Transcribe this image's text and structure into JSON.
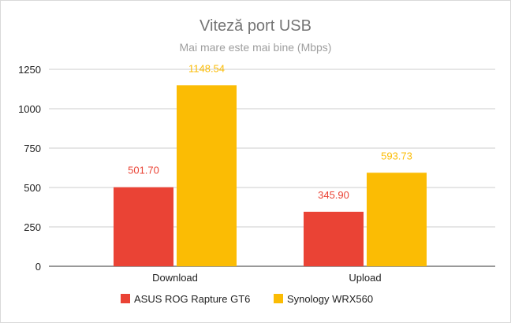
{
  "chart_data": {
    "type": "bar",
    "title": "Viteză port USB",
    "subtitle": "Mai mare este mai bine (Mbps)",
    "categories": [
      "Download",
      "Upload"
    ],
    "series": [
      {
        "name": "ASUS ROG Rapture GT6",
        "color": "#ea4335",
        "values": [
          501.7,
          345.9
        ],
        "labels": [
          "501.70",
          "345.90"
        ]
      },
      {
        "name": "Synology WRX560",
        "color": "#fbbc04",
        "values": [
          1148.54,
          593.73
        ],
        "labels": [
          "1148.54",
          "593.73"
        ]
      }
    ],
    "ylim": [
      0,
      1250
    ],
    "yticks": [
      "0",
      "250",
      "500",
      "750",
      "1000",
      "1250"
    ],
    "grid": true,
    "legend_position": "bottom"
  }
}
